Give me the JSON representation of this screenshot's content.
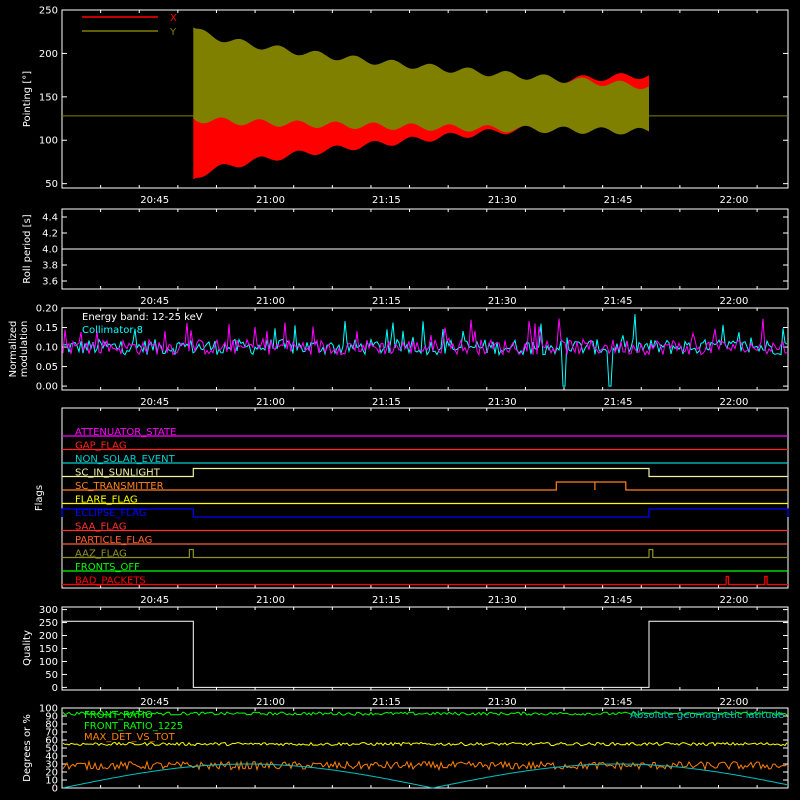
{
  "chart_data": [
    {
      "type": "line",
      "ylabel": "Pointing [°]",
      "ylim": [
        45,
        250
      ],
      "yticks": [
        50,
        100,
        150,
        200,
        250
      ],
      "xlim": [
        "20:33",
        "22:07"
      ],
      "xticks": [
        "20:45",
        "21:00",
        "21:15",
        "21:30",
        "21:45",
        "22:00"
      ],
      "series": [
        {
          "name": "X",
          "color": "#ff0000",
          "baseline": 128,
          "active_start": "20:50",
          "active_end": "21:49",
          "envelope_start": [
            55,
            130
          ],
          "envelope_end": [
            125,
            175
          ]
        },
        {
          "name": "Y",
          "color": "#808000",
          "baseline": 128,
          "active_start": "20:50",
          "active_end": "21:49",
          "envelope_start": [
            125,
            230
          ],
          "envelope_end": [
            110,
            162
          ]
        }
      ],
      "reference_line": 128
    },
    {
      "type": "line",
      "ylabel": "Roll period [s]",
      "ylim": [
        3.5,
        4.5
      ],
      "yticks": [
        "3.6",
        "3.8",
        "4.0",
        "4.2",
        "4.4"
      ],
      "xticks": [
        "20:45",
        "21:00",
        "21:15",
        "21:30",
        "21:45",
        "22:00"
      ],
      "series": [
        {
          "name": "",
          "color": "#ffffff",
          "constant": 4.0
        }
      ]
    },
    {
      "type": "line",
      "ylabel": "Normalized modulation",
      "ylim": [
        -0.01,
        0.2
      ],
      "yticks": [
        "0.00",
        "0.05",
        "0.10",
        "0.15",
        "0.20"
      ],
      "xticks": [
        "20:45",
        "21:00",
        "21:15",
        "21:30",
        "21:45",
        "22:00"
      ],
      "annotations": [
        "Energy band: 12-25 keV",
        "Collimator 8"
      ],
      "annotation_colors": [
        "#ffffff",
        "#00ffff"
      ],
      "series": [
        {
          "name": "Collimator 8",
          "color": "#00ffff",
          "mean": 0.1,
          "dropouts": [
            "21:38",
            "21:44"
          ]
        },
        {
          "name": "",
          "color": "#ff00ff",
          "mean": 0.1
        }
      ]
    },
    {
      "type": "line",
      "ylabel": "Flags",
      "xticks": [
        "20:45",
        "21:00",
        "21:15",
        "21:30",
        "21:45",
        "22:00"
      ],
      "flags": [
        {
          "name": "ATTENUATOR_STATE",
          "color": "#ff00ff",
          "high": []
        },
        {
          "name": "GAP_FLAG",
          "color": "#ff2020",
          "high": []
        },
        {
          "name": "NON_SOLAR_EVENT",
          "color": "#00d0d0",
          "high": []
        },
        {
          "name": "SC_IN_SUNLIGHT",
          "color": "#f0f0a0",
          "high": [
            [
              "20:50",
              "21:49"
            ]
          ]
        },
        {
          "name": "SC_TRANSMITTER",
          "color": "#ff8020",
          "high": [
            [
              "21:37",
              "21:42"
            ],
            [
              "21:42",
              "21:46"
            ]
          ]
        },
        {
          "name": "FLARE_FLAG",
          "color": "#ffff00",
          "high": []
        },
        {
          "name": "ECLIPSE_FLAG",
          "color": "#0000ff",
          "high": [
            [
              "20:33",
              "20:50"
            ],
            [
              "21:49",
              "22:07"
            ]
          ]
        },
        {
          "name": "SAA_FLAG",
          "color": "#ff3030",
          "high": []
        },
        {
          "name": "PARTICLE_FLAG",
          "color": "#ff6030",
          "high": []
        },
        {
          "name": "AAZ_FLAG",
          "color": "#909020",
          "high": [
            [
              "20:49.5",
              "20:50"
            ],
            [
              "21:49",
              "21:49.5"
            ]
          ]
        },
        {
          "name": "FRONTS_OFF",
          "color": "#00ff00",
          "high": []
        },
        {
          "name": "BAD_PACKETS",
          "color": "#ff0000",
          "high": [
            [
              "21:59",
              "21:59.3"
            ],
            [
              "22:04",
              "22:04.3"
            ]
          ]
        }
      ]
    },
    {
      "type": "line",
      "ylabel": "Quality",
      "ylim": [
        -10,
        310
      ],
      "yticks": [
        "0",
        "50",
        "100",
        "150",
        "200",
        "250",
        "300"
      ],
      "xticks": [
        "20:45",
        "21:00",
        "21:15",
        "21:30",
        "21:45",
        "22:00"
      ],
      "series": [
        {
          "name": "",
          "color": "#ffffff",
          "high_value": 255,
          "low_value": 0,
          "high_before": "20:50",
          "high_after": "21:49"
        }
      ]
    },
    {
      "type": "line",
      "ylabel": "Degrees or %",
      "ylim": [
        0,
        100
      ],
      "yticks": [
        "0",
        "10",
        "20",
        "30",
        "40",
        "50",
        "60",
        "70",
        "80",
        "90",
        "100"
      ],
      "xticks": [],
      "legend": [
        "FRONT_RATIO",
        "FRONT_RATIO_1225",
        "MAX_DET_VS_TOT",
        "Absolute geomagnetic latitude"
      ],
      "series": [
        {
          "name": "FRONT_RATIO",
          "color": "#00ff00",
          "level": 93
        },
        {
          "name": "FRONT_RATIO_1225",
          "color": "#ffff00",
          "level": 55
        },
        {
          "name": "MAX_DET_VS_TOT",
          "color": "#ff8000",
          "level": 28
        },
        {
          "name": "Absolute geomagnetic latitude",
          "color": "#00c0c0",
          "period_min": 48
        }
      ]
    }
  ],
  "style": {
    "background": "#000000",
    "axis": "#ffffff"
  }
}
